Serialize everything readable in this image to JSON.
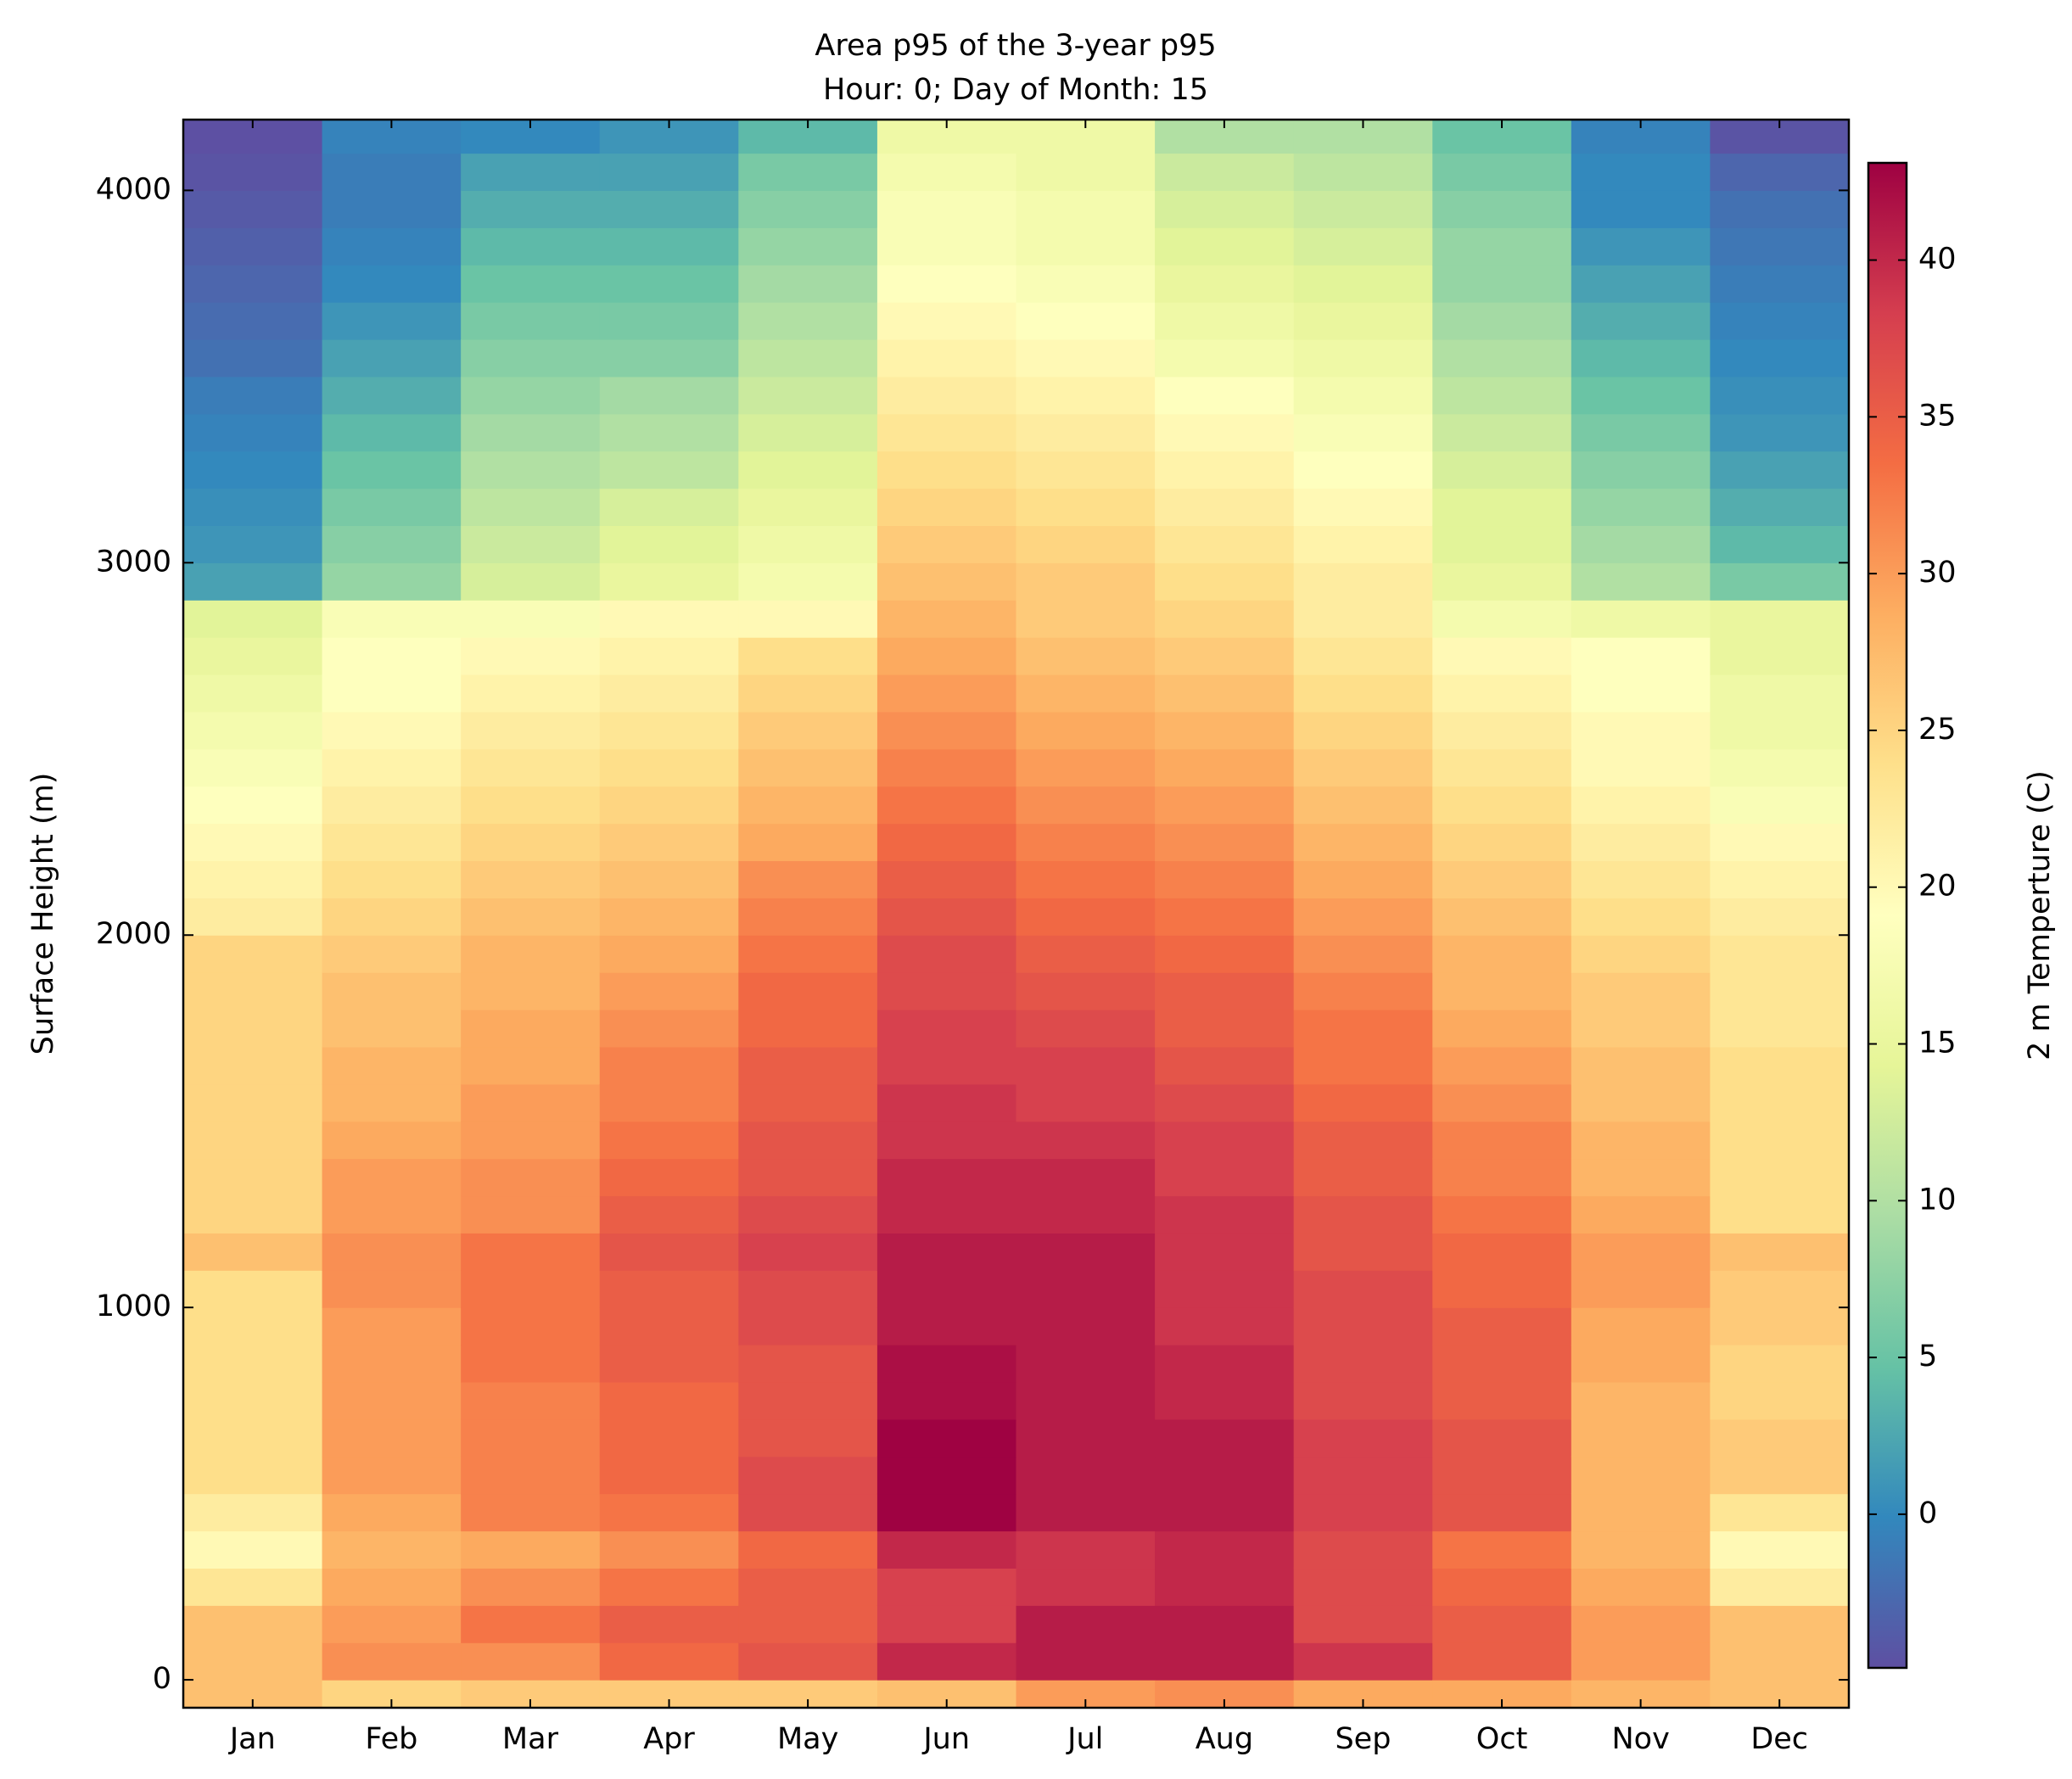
{
  "chart_data": {
    "type": "heatmap",
    "title": "Area p95 of the 3-year p95",
    "subtitle": "Hour: 0; Day of Month: 15",
    "y_label": "Surface Height (m)",
    "colorbar_label": "2 m Temperture (C)",
    "categories": [
      "Jan",
      "Feb",
      "Mar",
      "Apr",
      "May",
      "Jun",
      "Jul",
      "Aug",
      "Sep",
      "Oct",
      "Nov",
      "Dec"
    ],
    "y_edges": [
      -75,
      0,
      100,
      200,
      300,
      400,
      500,
      600,
      700,
      800,
      900,
      1000,
      1100,
      1200,
      1300,
      1400,
      1500,
      1600,
      1700,
      1800,
      1900,
      2000,
      2100,
      2200,
      2300,
      2400,
      2500,
      2600,
      2700,
      2800,
      2900,
      3000,
      3100,
      3200,
      3300,
      3400,
      3500,
      3600,
      3700,
      3800,
      3900,
      4000,
      4100,
      4190
    ],
    "ylim": [
      -75,
      4190
    ],
    "yticks": [
      0,
      1000,
      2000,
      3000,
      4000
    ],
    "clim": [
      -4.9,
      43.1
    ],
    "cticks": [
      0,
      5,
      10,
      15,
      20,
      25,
      30,
      35,
      40
    ],
    "colormap": [
      "#5e4fa2",
      "#3288bd",
      "#66c2a5",
      "#abdda4",
      "#e6f598",
      "#ffffbf",
      "#fee08b",
      "#fdae61",
      "#f46d43",
      "#d53e4f",
      "#9e0142"
    ],
    "values": [
      [
        27,
        27,
        27,
        23,
        20,
        22,
        24,
        24,
        24,
        24,
        24,
        24,
        27,
        25,
        25,
        25,
        25,
        25,
        25,
        25,
        25,
        22,
        21,
        20,
        19,
        18,
        17,
        16,
        15,
        14,
        2,
        1,
        0.5,
        0,
        -0.5,
        -1,
        -2,
        -2.5,
        -3,
        -3.5,
        -4,
        -4.5,
        -4.8
      ],
      [
        25,
        31,
        30,
        29,
        28,
        29,
        30,
        30,
        30,
        30,
        30,
        31,
        31,
        30,
        30,
        29,
        28,
        28,
        27,
        27,
        26,
        25,
        24,
        23,
        22,
        21,
        20,
        19,
        19,
        18,
        8,
        7,
        6,
        5,
        4,
        3,
        2,
        1,
        0,
        -0.5,
        -1,
        -1,
        -0.5
      ],
      [
        26,
        31,
        33,
        31,
        29,
        32,
        32,
        32,
        32,
        33,
        33,
        33,
        33,
        31,
        31,
        30,
        30,
        29,
        29,
        28,
        28,
        27,
        26,
        25,
        24,
        23,
        22,
        21,
        20,
        18,
        13,
        12,
        11,
        10,
        9,
        8,
        7,
        6,
        5,
        4,
        3,
        2,
        0
      ],
      [
        26,
        34,
        35,
        33,
        31,
        33,
        34,
        34,
        34,
        35,
        35,
        35,
        36,
        35,
        34,
        33,
        32,
        32,
        31,
        30,
        29,
        28,
        27,
        26,
        25,
        24,
        23,
        22,
        21,
        20,
        15,
        14,
        13,
        11,
        10,
        9,
        7,
        6,
        5,
        4,
        3,
        2,
        1
      ],
      [
        26,
        36,
        35,
        35,
        34,
        37,
        37,
        36,
        36,
        36,
        37,
        37,
        38,
        37,
        36,
        36,
        35,
        35,
        34,
        34,
        33,
        32,
        31,
        29,
        28,
        27,
        26,
        25,
        24,
        20,
        17,
        16,
        15,
        14,
        13,
        12,
        11,
        10,
        9,
        8,
        7,
        6,
        4
      ],
      [
        27,
        40,
        38,
        38,
        40,
        43,
        43,
        43,
        42,
        42,
        41,
        41,
        41,
        40,
        40,
        39,
        39,
        38,
        38,
        37,
        37,
        36,
        35,
        34,
        33,
        32,
        31,
        30,
        29,
        28,
        27,
        26,
        25,
        24,
        23,
        22,
        21,
        20,
        19,
        18,
        18,
        17,
        16
      ],
      [
        30,
        41,
        41,
        39,
        39,
        41,
        41,
        41,
        41,
        41,
        41,
        41,
        41,
        40,
        40,
        39,
        38,
        38,
        37,
        36,
        35,
        34,
        33,
        32,
        31,
        30,
        29,
        28,
        27,
        26,
        26,
        25,
        24,
        23,
        22,
        21,
        20,
        19,
        18,
        17,
        17,
        16,
        16
      ],
      [
        31,
        41,
        41,
        40,
        40,
        41,
        41,
        41,
        40,
        40,
        39,
        39,
        39,
        39,
        38,
        38,
        37,
        36,
        35,
        35,
        34,
        33,
        32,
        31,
        30,
        29,
        28,
        27,
        26,
        25,
        24,
        23,
        22,
        21,
        20,
        19,
        17,
        16,
        15,
        14,
        13,
        12,
        10
      ],
      [
        29,
        39,
        37,
        37,
        37,
        38,
        38,
        38,
        37,
        37,
        37,
        37,
        36,
        36,
        35,
        35,
        34,
        33,
        33,
        32,
        31,
        30,
        29,
        28,
        27,
        26,
        25,
        24,
        23,
        22,
        22,
        21,
        20,
        19,
        18,
        17,
        16,
        15,
        14,
        13,
        12,
        11,
        10
      ],
      [
        29,
        35,
        35,
        34,
        33,
        36,
        36,
        36,
        35,
        35,
        35,
        34,
        34,
        33,
        32,
        32,
        31,
        30,
        29,
        28,
        28,
        27,
        26,
        25,
        24,
        23,
        22,
        21,
        20,
        17,
        15,
        14,
        14,
        13,
        12,
        11,
        10,
        9,
        8,
        8,
        7,
        6,
        5
      ],
      [
        28,
        30,
        30,
        29,
        28,
        28,
        28,
        28,
        28,
        29,
        29,
        30,
        30,
        29,
        28,
        28,
        27,
        27,
        26,
        26,
        25,
        24,
        23,
        22,
        21,
        20,
        20,
        19,
        19,
        16,
        10,
        9,
        8,
        7,
        6,
        5,
        4,
        3,
        2,
        1,
        0,
        0,
        -0.5
      ],
      [
        27,
        27,
        27,
        22,
        20,
        23,
        26,
        26,
        25,
        25,
        26,
        26,
        27,
        24,
        24,
        24,
        24,
        24,
        23,
        23,
        23,
        22,
        21,
        20,
        18,
        17,
        16,
        16,
        15,
        15,
        6,
        4,
        3,
        2,
        1,
        0.5,
        0,
        -0.5,
        -1,
        -1.5,
        -2,
        -3,
        -4.5
      ]
    ]
  }
}
